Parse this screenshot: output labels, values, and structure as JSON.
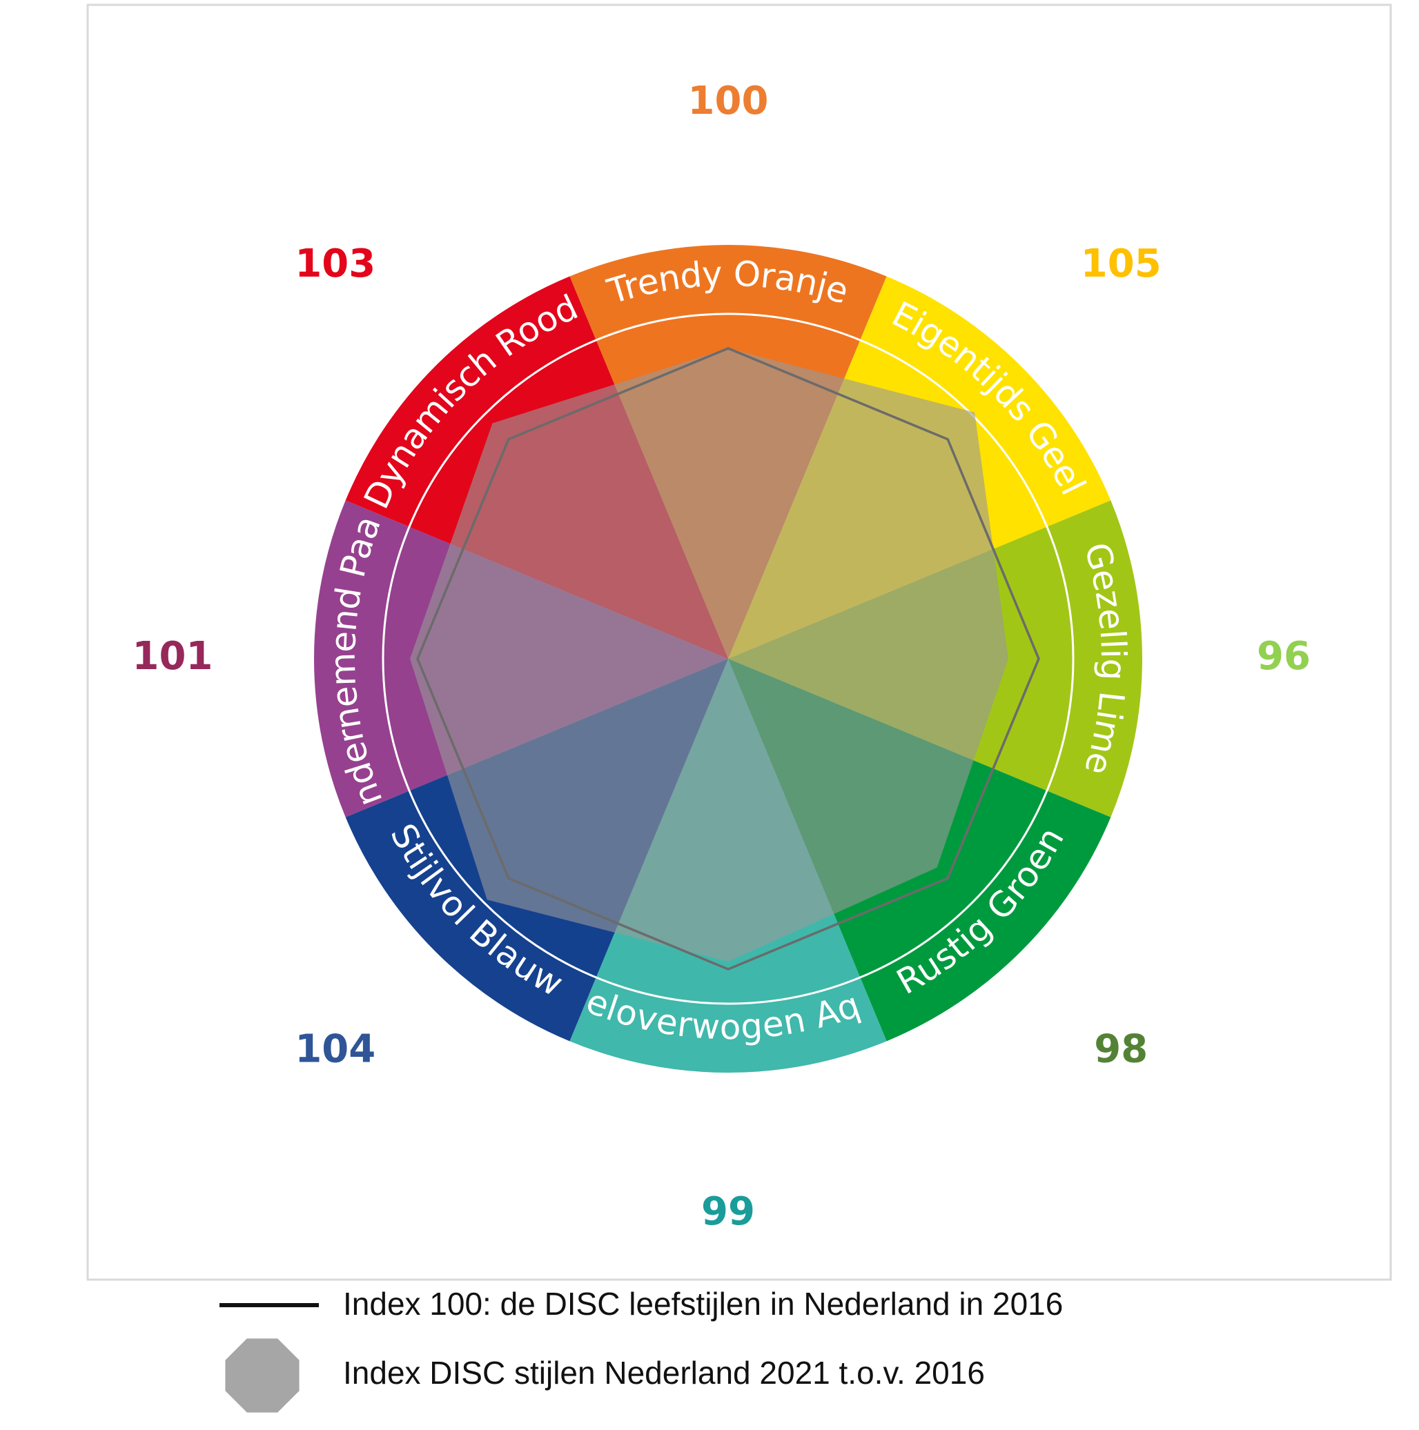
{
  "chart_data": {
    "type": "radar",
    "categories": [
      "Trendy Oranje",
      "Eigentijds Geel",
      "Gezellig Lime",
      "Rustig Groen",
      "Weloverwogen Aqua",
      "Stijlvol Blauw",
      "Ondernemend Paars",
      "Dynamisch Rood"
    ],
    "series": [
      {
        "name": "Index 100: de DISC leefstijlen in Nederland in 2016",
        "values": [
          100,
          100,
          100,
          100,
          100,
          100,
          100,
          100
        ]
      },
      {
        "name": "Index DISC stijlen Nederland 2021 t.o.v. 2016",
        "values": [
          100,
          105,
          96,
          98,
          99,
          104,
          101,
          103
        ]
      }
    ],
    "index_labels": [
      "100",
      "105",
      "96",
      "98",
      "99",
      "104",
      "101",
      "103"
    ],
    "segment_colors": [
      "#EE7520",
      "#FFE200",
      "#A2C616",
      "#009A3E",
      "#40B8AB",
      "#15418F",
      "#96418F",
      "#E3051B"
    ],
    "index_label_colors": [
      "#ED7D31",
      "#FFC000",
      "#92D050",
      "#548235",
      "#1A9C9A",
      "#2F5597",
      "#96285A",
      "#E3051B"
    ],
    "baseline_color": "#6b6b6b",
    "series_fill_color": "#999999",
    "legend_placement": "bottom"
  }
}
